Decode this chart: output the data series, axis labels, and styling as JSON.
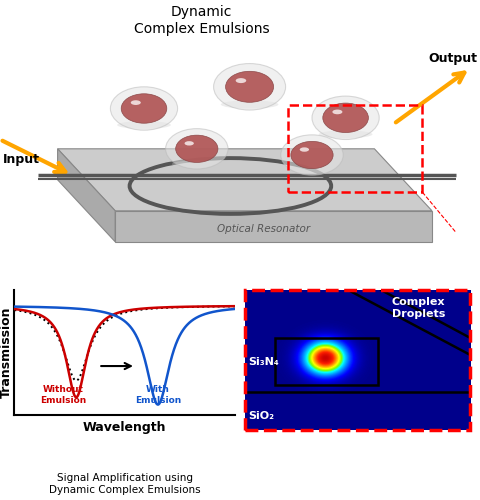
{
  "title_top": "Dynamic\nComplex Emulsions",
  "label_input": "Input",
  "label_output": "Output",
  "label_optical_resonator": "Optical Resonator",
  "label_without_emulsion": "Without\nEmulsion",
  "label_with_emulsion": "With\nEmulsion",
  "label_transmission": "Transmission",
  "label_wavelength": "Wavelength",
  "label_caption": "Signal Amplification using\nDynamic Complex Emulsions",
  "label_complex_droplets": "Complex\nDroplets",
  "label_si3n4": "Si₃N₄",
  "label_sio2": "SiO₂",
  "bg_color": "#ffffff",
  "arrow_color": "#FFA500",
  "plot_line_red": "#cc0000",
  "plot_line_blue": "#1155cc",
  "chip_top_color": "#cccccc",
  "chip_side_color": "#aaaaaa",
  "chip_front_color": "#b8b8b8",
  "waveguide_color": "#555555",
  "droplet_outer_color": "#d8d8d8",
  "droplet_inner_color": "#b05555"
}
